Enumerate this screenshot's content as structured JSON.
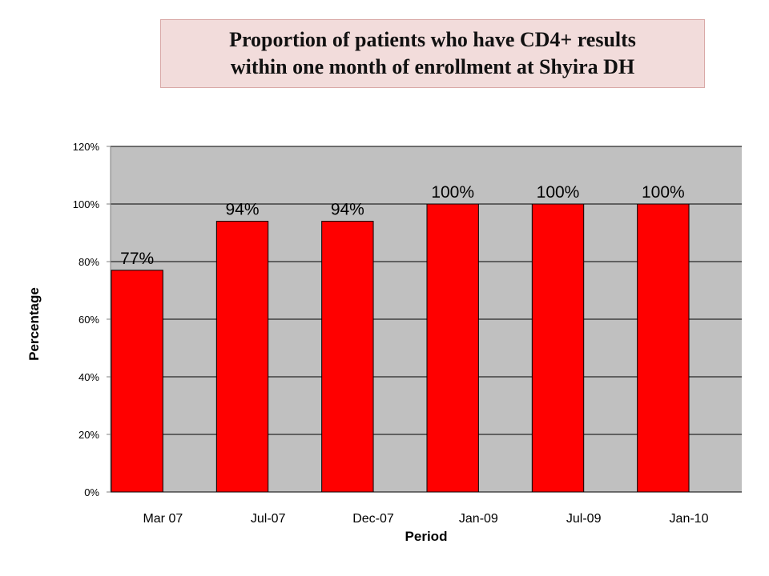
{
  "chart_data": {
    "type": "bar",
    "title": "Proportion of patients who have CD4+ results\nwithin one month of enrollment at Shyira DH",
    "xlabel": "Period",
    "ylabel": "Percentage",
    "categories": [
      "Mar 07",
      "Jul-07",
      "Dec-07",
      "Jan-09",
      "Jul-09",
      "Jan-10"
    ],
    "values": [
      77,
      94,
      94,
      100,
      100,
      100
    ],
    "data_labels": [
      "77%",
      "94%",
      "94%",
      "100%",
      "100%",
      "100%"
    ],
    "y_ticks": [
      "0%",
      "20%",
      "40%",
      "60%",
      "80%",
      "100%",
      "120%"
    ],
    "ylim": [
      0,
      120
    ],
    "grid": true,
    "legend": "none",
    "colors": {
      "bar": "#ff0000",
      "plot_background": "#c0c0c0",
      "title_background": "#f2dcdb"
    }
  }
}
